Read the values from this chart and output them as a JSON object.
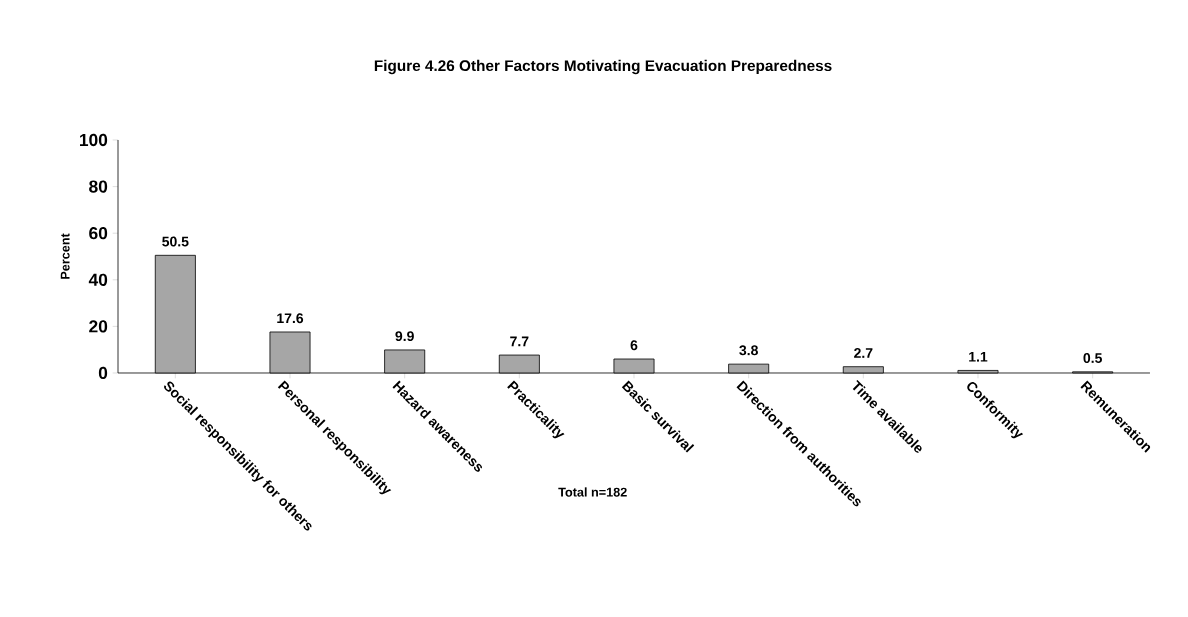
{
  "chart_data": {
    "type": "bar",
    "title": "Figure 4.26  Other Factors Motivating Evacuation Preparedness",
    "xlabel": "Total n=182",
    "ylabel": "Percent",
    "categories": [
      "Social responsibility for others",
      "Personal responsibility",
      "Hazard awareness",
      "Practicality",
      "Basic survival",
      "Direction from authorities",
      "Time available",
      "Conformity",
      "Remuneration"
    ],
    "values": [
      50.5,
      17.6,
      9.9,
      7.7,
      6,
      3.8,
      2.7,
      1.1,
      0.5
    ],
    "color": "#a6a6a6",
    "ylim": [
      0,
      100
    ],
    "yticks": [
      0,
      20,
      40,
      60,
      80,
      100
    ],
    "data_labels": true
  }
}
